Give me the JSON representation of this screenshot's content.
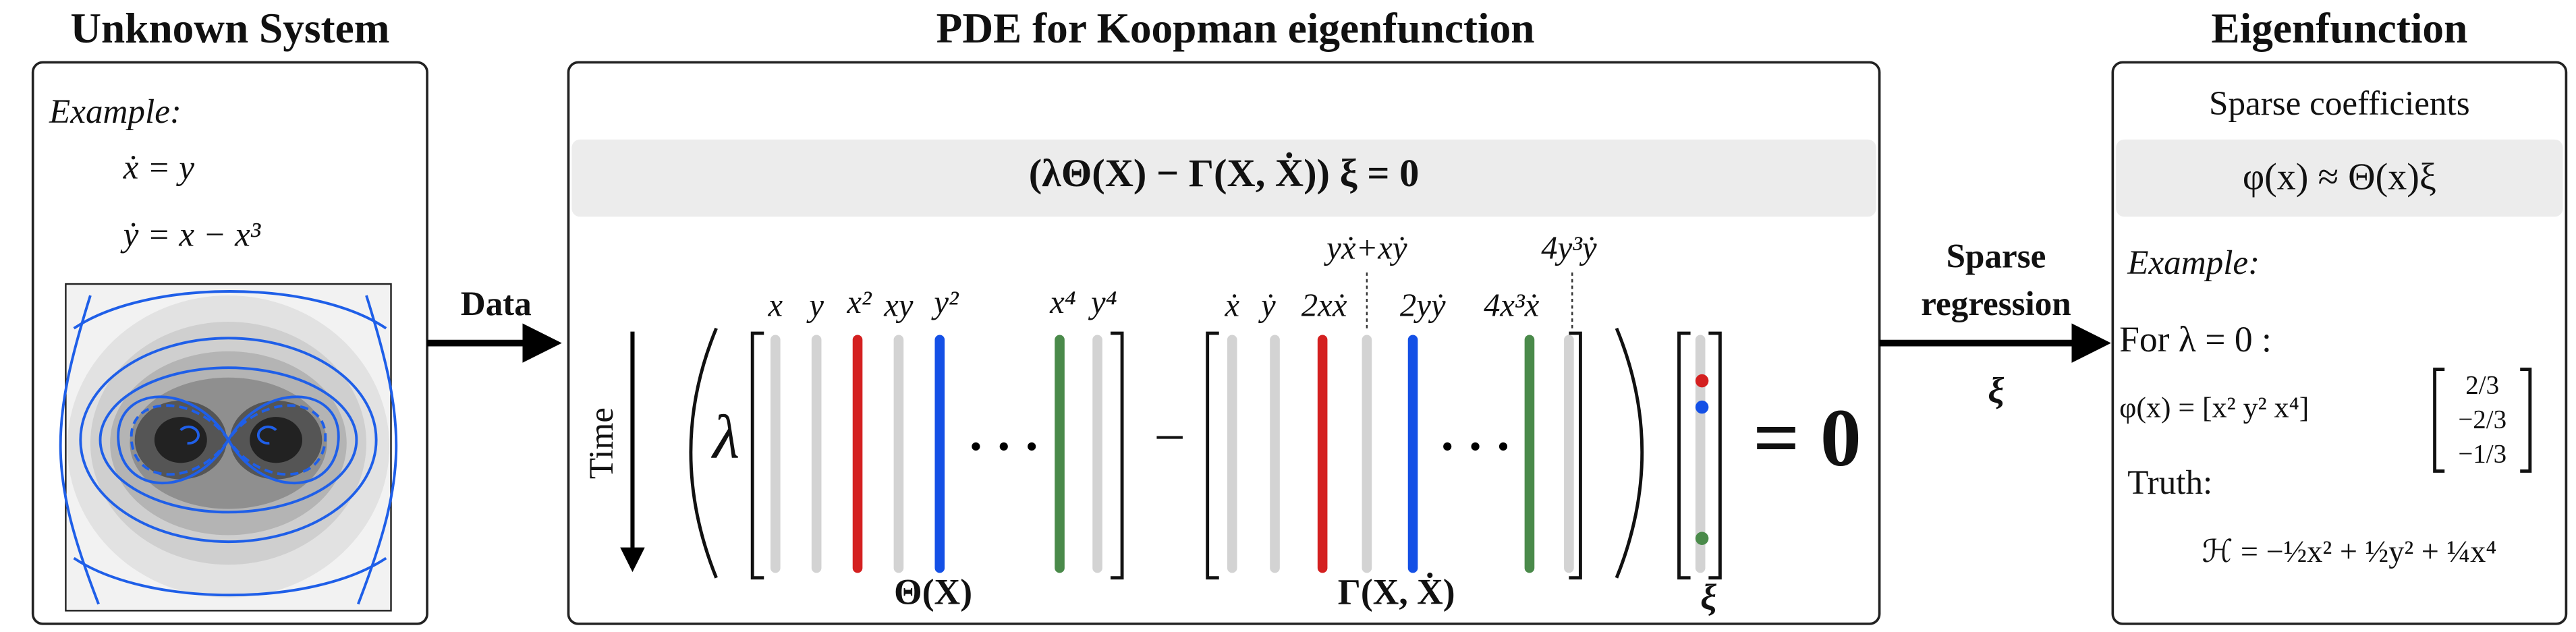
{
  "left": {
    "title": "Unknown System",
    "example": "Example:",
    "eq1": "ẋ = y",
    "eq2": "ẏ = x − x³"
  },
  "arrow_data": {
    "label": "Data"
  },
  "center": {
    "title": "PDE for Koopman eigenfunction",
    "equation": "(λΘ(X) − Γ(X, Ẋ)) ξ = 0",
    "time": "Time",
    "lambda": "λ",
    "theta_columns": [
      "x",
      "y",
      "x²",
      "xy",
      "y²",
      "x⁴",
      "y⁴"
    ],
    "theta_label": "Θ(X)",
    "minus": "−",
    "gamma_columns": [
      "ẋ",
      "ẏ",
      "2xẋ",
      "2yẏ",
      "4x³ẋ"
    ],
    "gamma_upper": [
      "yẋ+xẏ",
      "4y³ẏ"
    ],
    "gamma_label": "Γ(X, Ẋ)",
    "xi_label": "ξ",
    "equals": "= 0"
  },
  "arrow_regression": {
    "line1": "Sparse",
    "line2": "regression",
    "symbol": "ξ"
  },
  "right": {
    "title": "Eigenfunction",
    "subtitle": "Sparse coefficients",
    "equation": "φ(x) ≈ Θ(x)ξ",
    "example": "Example:",
    "for": "For  λ = 0 :",
    "phi": "φ(x) = [x²   y²   x⁴]",
    "coefficients": [
      "2/3",
      "−2/3",
      "−1/3"
    ],
    "truth": "Truth:",
    "hamiltonian": "ℋ = −½x² + ½y² + ¼x⁴"
  }
}
